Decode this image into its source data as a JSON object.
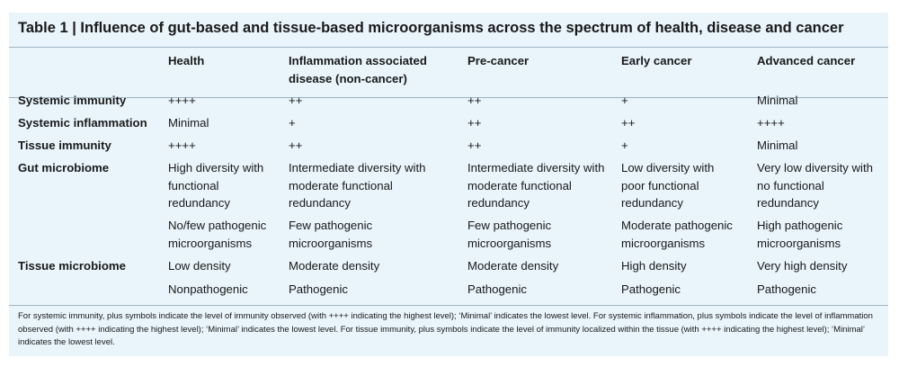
{
  "title": "Table 1 | Influence of gut-based and tissue-based microorganisms across the spectrum of health, disease and cancer",
  "columns": [
    "Health",
    "Inflammation associated disease (non-cancer)",
    "Pre-cancer",
    "Early cancer",
    "Advanced cancer"
  ],
  "rows": {
    "systemic_immunity": {
      "label": "Systemic immunity",
      "values": [
        "++++",
        "++",
        "++",
        "+",
        "Minimal"
      ]
    },
    "systemic_inflammation": {
      "label": "Systemic inflammation",
      "values": [
        "Minimal",
        "+",
        "++",
        "++",
        "++++"
      ]
    },
    "tissue_immunity": {
      "label": "Tissue immunity",
      "values": [
        "++++",
        "++",
        "++",
        "+",
        "Minimal"
      ]
    },
    "gut_microbiome": {
      "label": "Gut microbiome",
      "diversity": [
        "High diversity with functional redundancy",
        "Intermediate diversity with moderate functional redundancy",
        "Intermediate diversity with moderate functional redundancy",
        "Low diversity with poor functional redundancy",
        "Very low diversity with no functional redundancy"
      ],
      "pathogens": [
        "No/few pathogenic microorganisms",
        "Few pathogenic microorganisms",
        "Few pathogenic microorganisms",
        "Moderate pathogenic microorganisms",
        "High pathogenic microorganisms"
      ]
    },
    "tissue_microbiome": {
      "label": "Tissue microbiome",
      "density": [
        "Low density",
        "Moderate density",
        "Moderate density",
        "High density",
        "Very high density"
      ],
      "pathogenicity": [
        "Nonpathogenic",
        "Pathogenic",
        "Pathogenic",
        "Pathogenic",
        "Pathogenic"
      ]
    }
  },
  "footnote": "For systemic immunity, plus symbols indicate the level of immunity observed (with ++++ indicating the highest level); ‘Minimal’ indicates the lowest level. For systemic inflammation, plus symbols indicate the level of inflammation observed (with ++++ indicating the highest level); ‘Minimal’ indicates the lowest level. For tissue immunity, plus symbols indicate the level of immunity localized within the tissue (with ++++ indicating the highest level); ‘Minimal’ indicates the lowest level."
}
